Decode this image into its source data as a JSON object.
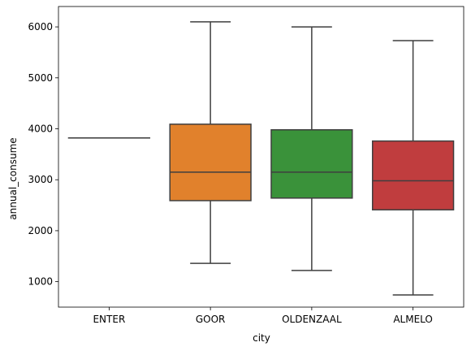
{
  "chart_data": {
    "type": "box",
    "xlabel": "city",
    "ylabel": "annual_consume",
    "ylim": [
      500,
      6400
    ],
    "yticks": [
      1000,
      2000,
      3000,
      4000,
      5000,
      6000
    ],
    "grid": false,
    "categories": [
      "ENTER",
      "GOOR",
      "OLDENZAAL",
      "ALMELO"
    ],
    "boxes": [
      {
        "name": "ENTER",
        "min": 3820,
        "q1": 3820,
        "median": 3820,
        "q3": 3820,
        "max": 3820,
        "color": "#3a75b0"
      },
      {
        "name": "GOOR",
        "min": 1360,
        "q1": 2590,
        "median": 3150,
        "q3": 4090,
        "max": 6100,
        "color": "#e1812c"
      },
      {
        "name": "OLDENZAAL",
        "min": 1220,
        "q1": 2640,
        "median": 3150,
        "q3": 3980,
        "max": 6000,
        "color": "#3a923a"
      },
      {
        "name": "ALMELO",
        "min": 740,
        "q1": 2410,
        "median": 2980,
        "q3": 3760,
        "max": 5730,
        "color": "#c03d3e"
      }
    ]
  }
}
